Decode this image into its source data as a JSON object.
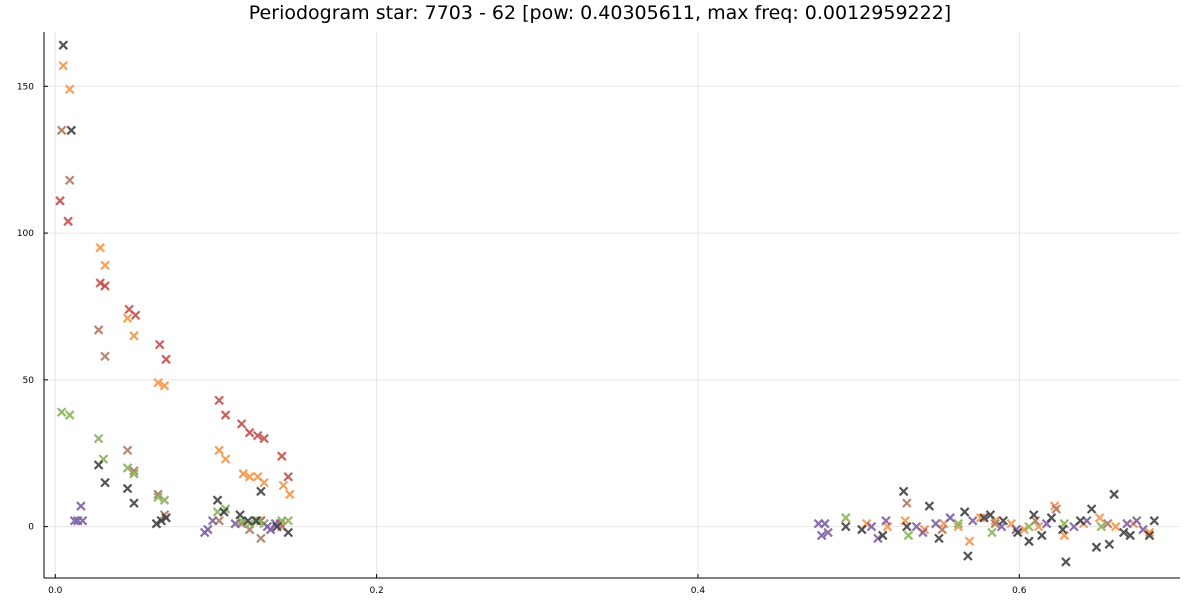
{
  "chart_data": {
    "type": "scatter",
    "title": "Periodogram star: 7703 - 62 [pow: 0.40305611, max freq: 0.0012959222]",
    "xlabel": "",
    "ylabel": "",
    "xlim": [
      -0.007,
      0.7
    ],
    "ylim": [
      -17.5,
      168.5
    ],
    "xticks": [
      0.0,
      0.2,
      0.4,
      0.6
    ],
    "xtick_labels": [
      "0.0",
      "0.2",
      "0.4",
      "0.6"
    ],
    "yticks": [
      0,
      50,
      100,
      150
    ],
    "ytick_labels": [
      "0",
      "50",
      "100",
      "150"
    ],
    "grid": true,
    "legend": "none",
    "marker": "x",
    "series": [
      {
        "color": "#c44e4c",
        "points": [
          [
            0.003,
            111
          ],
          [
            0.008,
            104
          ],
          [
            0.028,
            83
          ],
          [
            0.031,
            82
          ],
          [
            0.046,
            74
          ],
          [
            0.05,
            72
          ],
          [
            0.065,
            62
          ],
          [
            0.069,
            57
          ],
          [
            0.102,
            43
          ],
          [
            0.106,
            38
          ],
          [
            0.116,
            35
          ],
          [
            0.121,
            32
          ],
          [
            0.126,
            31
          ],
          [
            0.13,
            30
          ],
          [
            0.141,
            24
          ],
          [
            0.145,
            17
          ],
          [
            0.128,
            2
          ],
          [
            0.14,
            1
          ]
        ]
      },
      {
        "color": "#f4954a",
        "points": [
          [
            0.005,
            157
          ],
          [
            0.009,
            149
          ],
          [
            0.028,
            95
          ],
          [
            0.031,
            89
          ],
          [
            0.045,
            71
          ],
          [
            0.049,
            65
          ],
          [
            0.064,
            49
          ],
          [
            0.068,
            48
          ],
          [
            0.102,
            26
          ],
          [
            0.106,
            23
          ],
          [
            0.117,
            18
          ],
          [
            0.121,
            17
          ],
          [
            0.126,
            17
          ],
          [
            0.13,
            15
          ],
          [
            0.142,
            14
          ],
          [
            0.146,
            11
          ],
          [
            0.505,
            1
          ],
          [
            0.518,
            0
          ],
          [
            0.529,
            2
          ],
          [
            0.541,
            -1
          ],
          [
            0.553,
            1
          ],
          [
            0.562,
            0
          ],
          [
            0.569,
            -5
          ],
          [
            0.576,
            3
          ],
          [
            0.585,
            2
          ],
          [
            0.595,
            1
          ],
          [
            0.603,
            -1
          ],
          [
            0.612,
            0
          ],
          [
            0.622,
            7
          ],
          [
            0.628,
            -3
          ],
          [
            0.64,
            1
          ],
          [
            0.65,
            3
          ],
          [
            0.66,
            0
          ],
          [
            0.671,
            1
          ],
          [
            0.681,
            -2
          ]
        ]
      },
      {
        "color": "#b07a64",
        "points": [
          [
            0.004,
            135
          ],
          [
            0.009,
            118
          ],
          [
            0.027,
            67
          ],
          [
            0.031,
            58
          ],
          [
            0.045,
            26
          ],
          [
            0.049,
            19
          ],
          [
            0.064,
            11
          ],
          [
            0.068,
            4
          ],
          [
            0.102,
            2
          ],
          [
            0.116,
            1
          ],
          [
            0.121,
            -1
          ],
          [
            0.128,
            -4
          ],
          [
            0.141,
            0
          ],
          [
            0.53,
            8
          ],
          [
            0.552,
            -1
          ],
          [
            0.585,
            1
          ],
          [
            0.61,
            2
          ],
          [
            0.623,
            6
          ],
          [
            0.655,
            1
          ]
        ]
      },
      {
        "color": "#88b35a",
        "points": [
          [
            0.004,
            39
          ],
          [
            0.009,
            38
          ],
          [
            0.027,
            30
          ],
          [
            0.03,
            23
          ],
          [
            0.045,
            20
          ],
          [
            0.049,
            18
          ],
          [
            0.064,
            10
          ],
          [
            0.068,
            9
          ],
          [
            0.101,
            5
          ],
          [
            0.106,
            6
          ],
          [
            0.116,
            2
          ],
          [
            0.121,
            1
          ],
          [
            0.126,
            2
          ],
          [
            0.13,
            1
          ],
          [
            0.141,
            2
          ],
          [
            0.145,
            2
          ],
          [
            0.492,
            3
          ],
          [
            0.531,
            -3
          ],
          [
            0.562,
            1
          ],
          [
            0.583,
            -2
          ],
          [
            0.606,
            0
          ],
          [
            0.628,
            1
          ],
          [
            0.651,
            0
          ]
        ]
      },
      {
        "color": "#7e5ea5",
        "points": [
          [
            0.012,
            2
          ],
          [
            0.014,
            2
          ],
          [
            0.016,
            7
          ],
          [
            0.017,
            2
          ],
          [
            0.093,
            -2
          ],
          [
            0.095,
            -1
          ],
          [
            0.098,
            2
          ],
          [
            0.112,
            1
          ],
          [
            0.132,
            0
          ],
          [
            0.134,
            -1
          ],
          [
            0.137,
            1
          ],
          [
            0.475,
            1
          ],
          [
            0.477,
            -3
          ],
          [
            0.479,
            1
          ],
          [
            0.481,
            -2
          ],
          [
            0.508,
            0
          ],
          [
            0.512,
            -4
          ],
          [
            0.517,
            2
          ],
          [
            0.536,
            0
          ],
          [
            0.54,
            -2
          ],
          [
            0.548,
            1
          ],
          [
            0.557,
            3
          ],
          [
            0.571,
            2
          ],
          [
            0.589,
            0
          ],
          [
            0.598,
            -1
          ],
          [
            0.617,
            1
          ],
          [
            0.634,
            0
          ],
          [
            0.642,
            2
          ],
          [
            0.667,
            1
          ],
          [
            0.673,
            2
          ],
          [
            0.677,
            -1
          ]
        ]
      },
      {
        "color": "#404040",
        "points": [
          [
            0.005,
            164
          ],
          [
            0.01,
            135
          ],
          [
            0.027,
            21
          ],
          [
            0.031,
            15
          ],
          [
            0.045,
            13
          ],
          [
            0.049,
            8
          ],
          [
            0.063,
            1
          ],
          [
            0.066,
            2
          ],
          [
            0.069,
            3
          ],
          [
            0.101,
            9
          ],
          [
            0.105,
            5
          ],
          [
            0.115,
            4
          ],
          [
            0.12,
            2
          ],
          [
            0.125,
            2
          ],
          [
            0.128,
            12
          ],
          [
            0.138,
            0
          ],
          [
            0.145,
            -2
          ],
          [
            0.492,
            0
          ],
          [
            0.502,
            -1
          ],
          [
            0.515,
            -3
          ],
          [
            0.528,
            12
          ],
          [
            0.53,
            0
          ],
          [
            0.544,
            7
          ],
          [
            0.55,
            -4
          ],
          [
            0.566,
            5
          ],
          [
            0.568,
            -10
          ],
          [
            0.578,
            3
          ],
          [
            0.582,
            4
          ],
          [
            0.59,
            2
          ],
          [
            0.599,
            -2
          ],
          [
            0.606,
            -5
          ],
          [
            0.609,
            4
          ],
          [
            0.614,
            -3
          ],
          [
            0.62,
            3
          ],
          [
            0.627,
            -1
          ],
          [
            0.629,
            -12
          ],
          [
            0.638,
            2
          ],
          [
            0.645,
            6
          ],
          [
            0.648,
            -7
          ],
          [
            0.656,
            -6
          ],
          [
            0.659,
            11
          ],
          [
            0.665,
            -2
          ],
          [
            0.669,
            -3
          ],
          [
            0.681,
            -3
          ],
          [
            0.684,
            2
          ]
        ]
      }
    ]
  }
}
